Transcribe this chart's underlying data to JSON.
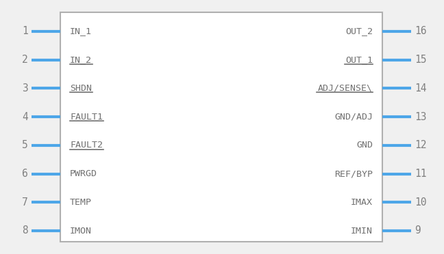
{
  "bg_color": "#f0f0f0",
  "body_edge_color": "#b0b0b0",
  "body_fill": "#ffffff",
  "pin_color": "#4da6e8",
  "text_color": "#707070",
  "num_color": "#808080",
  "left_pins": [
    {
      "num": 1,
      "label": "IN_1",
      "overline": false
    },
    {
      "num": 2,
      "label": "IN_2",
      "overline": true
    },
    {
      "num": 3,
      "label": "SHDN",
      "overline": true
    },
    {
      "num": 4,
      "label": "FAULT1",
      "overline": true
    },
    {
      "num": 5,
      "label": "FAULT2",
      "overline": true
    },
    {
      "num": 6,
      "label": "PWRGD",
      "overline": false
    },
    {
      "num": 7,
      "label": "TEMP",
      "overline": false
    },
    {
      "num": 8,
      "label": "IMON",
      "overline": false
    }
  ],
  "right_pins": [
    {
      "num": 16,
      "label": "OUT_2",
      "overline": false
    },
    {
      "num": 15,
      "label": "OUT_1",
      "overline": true
    },
    {
      "num": 14,
      "label": "ADJ/SENSE\\",
      "overline": true
    },
    {
      "num": 13,
      "label": "GND/ADJ",
      "overline": false
    },
    {
      "num": 12,
      "label": "GND",
      "overline": false
    },
    {
      "num": 11,
      "label": "REF/BYP",
      "overline": false
    },
    {
      "num": 10,
      "label": "IMAX",
      "overline": false
    },
    {
      "num": 9,
      "label": "IMIN",
      "overline": false
    }
  ],
  "fig_w": 6.48,
  "fig_h": 3.72,
  "dpi": 100,
  "font_size": 9.5,
  "num_font_size": 10.5
}
